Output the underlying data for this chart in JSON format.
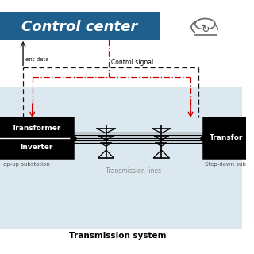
{
  "title": "Control center",
  "title_bg": "#1e5f8e",
  "title_text_color": "#ffffff",
  "bg_color": "#ffffff",
  "transmission_bg": "#dce8f0",
  "transmission_label": "Transmission system",
  "control_signal_label": "Control signal",
  "measurement_label": "ent data",
  "left_box_lines": [
    "Transformer",
    "Inverter"
  ],
  "left_box_label": "ep-up substation",
  "right_box_lines": [
    "Transfor"
  ],
  "right_box_label": "Step-down sub",
  "transmission_lines_label": "Transmission lines",
  "dashed_black_color": "#111111",
  "dashed_red_color": "#cc0000"
}
